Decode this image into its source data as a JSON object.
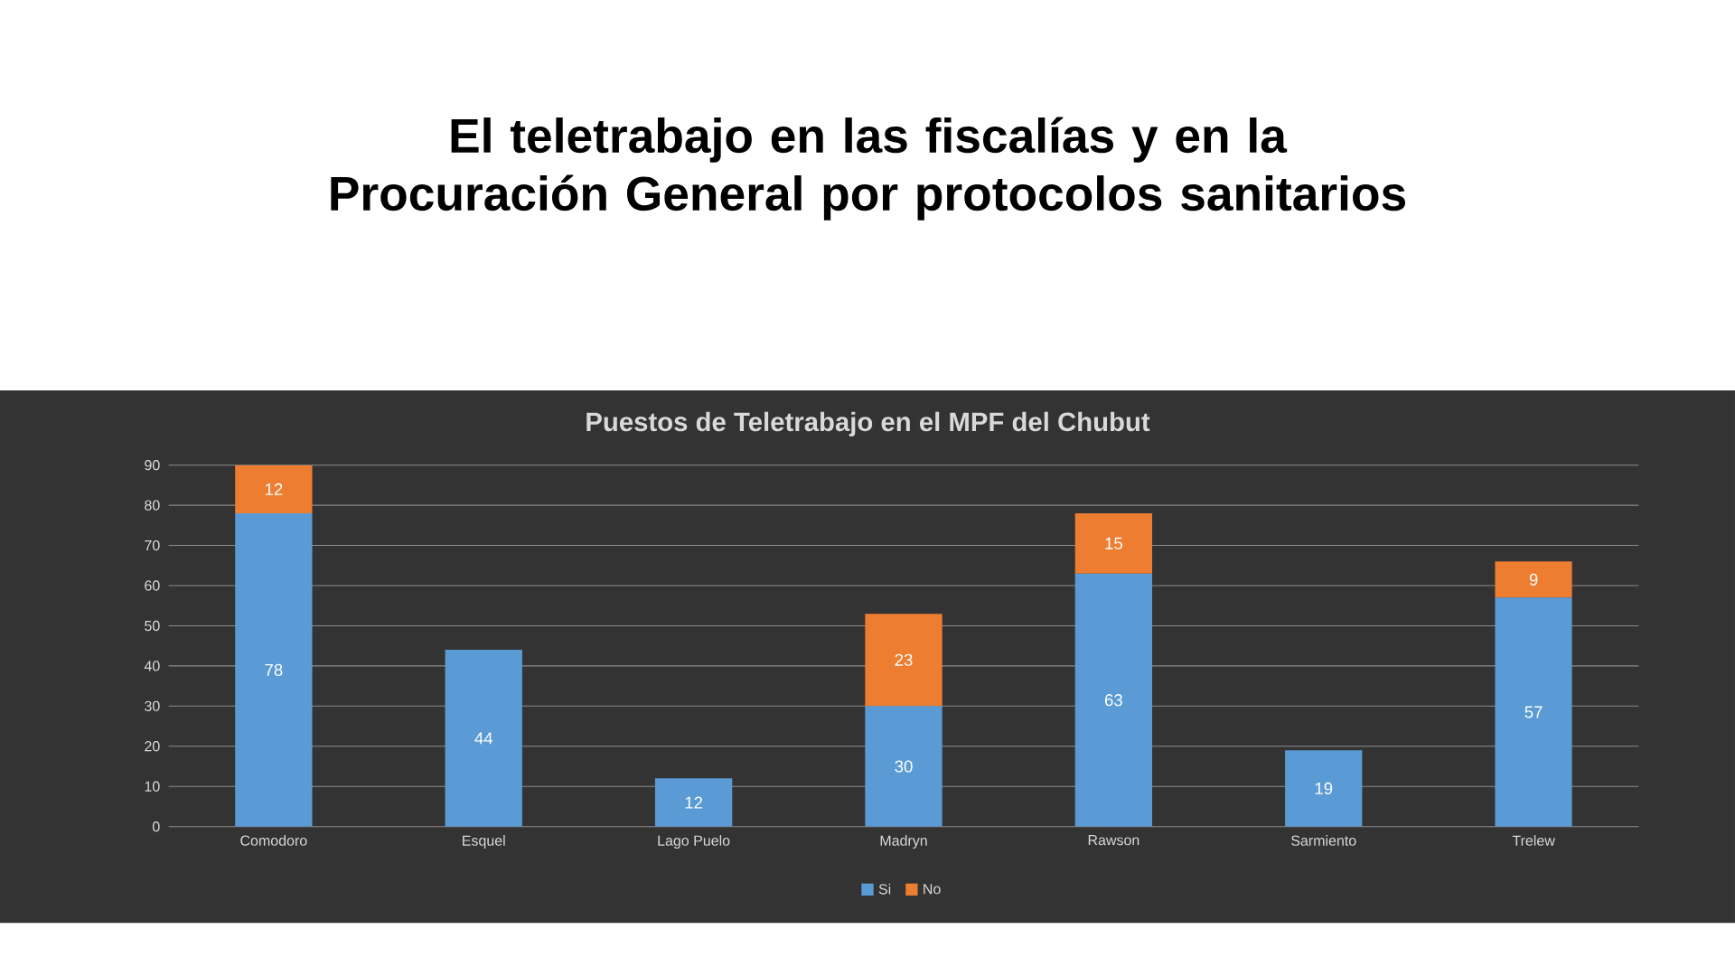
{
  "chart_data": {
    "type": "bar",
    "title": "El teletrabajo en las fiscalías y en la Procuración General por protocolos sanitarios",
    "subtitle": "Puestos de Teletrabajo en el MPF del Chubut",
    "categories": [
      "Comodoro",
      "Esquel",
      "Lago Puelo",
      "Madryn",
      "Rawson",
      "Sarmiento",
      "Trelew"
    ],
    "series": [
      {
        "name": "Si",
        "color": "#5b9bd5",
        "values": [
          78,
          44,
          12,
          30,
          63,
          19,
          57
        ]
      },
      {
        "name": "No",
        "color": "#ed7d31",
        "values": [
          12,
          null,
          null,
          23,
          15,
          null,
          9
        ]
      }
    ],
    "stacked": true,
    "ylim": [
      0,
      90
    ],
    "yticks": [
      0,
      10,
      20,
      30,
      40,
      50,
      60,
      70,
      80,
      90
    ],
    "grid": "y",
    "legend": "bottom",
    "data_labels": true
  }
}
